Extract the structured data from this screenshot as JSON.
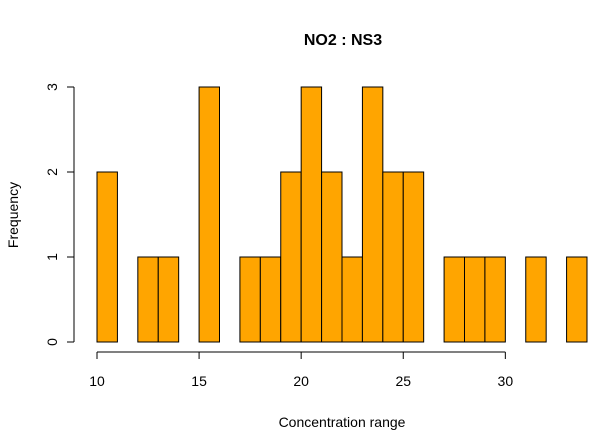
{
  "chart_data": {
    "type": "bar",
    "title": "NO2 : NS3",
    "xlabel": "Concentration range",
    "ylabel": "Frequency",
    "bar_color": "#FFA500",
    "bin_width": 1,
    "xlim": [
      10,
      34
    ],
    "ylim": [
      0,
      3
    ],
    "x_ticks": [
      10,
      15,
      20,
      25,
      30
    ],
    "y_ticks": [
      0,
      1,
      2,
      3
    ],
    "bins": [
      {
        "start": 10,
        "end": 11,
        "value": 2
      },
      {
        "start": 11,
        "end": 12,
        "value": 0
      },
      {
        "start": 12,
        "end": 13,
        "value": 1
      },
      {
        "start": 13,
        "end": 14,
        "value": 1
      },
      {
        "start": 14,
        "end": 15,
        "value": 0
      },
      {
        "start": 15,
        "end": 16,
        "value": 3
      },
      {
        "start": 16,
        "end": 17,
        "value": 0
      },
      {
        "start": 17,
        "end": 18,
        "value": 1
      },
      {
        "start": 18,
        "end": 19,
        "value": 1
      },
      {
        "start": 19,
        "end": 20,
        "value": 2
      },
      {
        "start": 20,
        "end": 21,
        "value": 3
      },
      {
        "start": 21,
        "end": 22,
        "value": 2
      },
      {
        "start": 22,
        "end": 23,
        "value": 1
      },
      {
        "start": 23,
        "end": 24,
        "value": 3
      },
      {
        "start": 24,
        "end": 25,
        "value": 2
      },
      {
        "start": 25,
        "end": 26,
        "value": 2
      },
      {
        "start": 26,
        "end": 27,
        "value": 0
      },
      {
        "start": 27,
        "end": 28,
        "value": 1
      },
      {
        "start": 28,
        "end": 29,
        "value": 1
      },
      {
        "start": 29,
        "end": 30,
        "value": 1
      },
      {
        "start": 30,
        "end": 31,
        "value": 0
      },
      {
        "start": 31,
        "end": 32,
        "value": 1
      },
      {
        "start": 32,
        "end": 33,
        "value": 0
      },
      {
        "start": 33,
        "end": 34,
        "value": 1
      }
    ]
  }
}
